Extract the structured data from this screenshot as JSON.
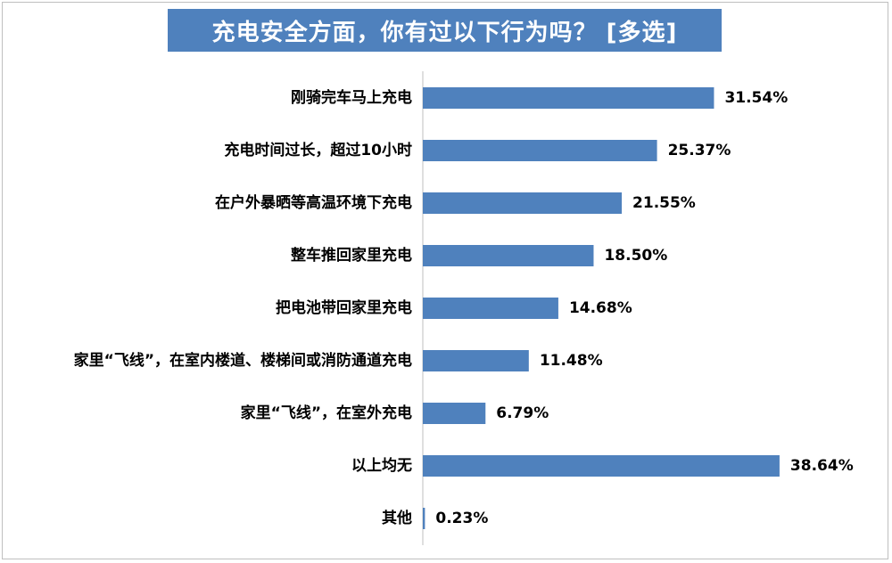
{
  "chart_data": {
    "type": "bar",
    "orientation": "horizontal",
    "title": "充电安全方面，你有过以下行为吗？ [多选]",
    "categories": [
      "刚骑完车马上充电",
      "充电时间过长，超过10小时",
      "在户外暴晒等高温环境下充电",
      "整车推回家里充电",
      "把电池带回家里充电",
      "家里“飞线”，在室内楼道、楼梯间或消防通道充电",
      "家里“飞线”，在室外充电",
      "以上均无",
      "其他"
    ],
    "values": [
      31.54,
      25.37,
      21.55,
      18.5,
      14.68,
      11.48,
      6.79,
      38.64,
      0.23
    ],
    "value_labels": [
      "31.54%",
      "25.37%",
      "21.55%",
      "18.50%",
      "14.68%",
      "11.48%",
      "6.79%",
      "38.64%",
      "0.23%"
    ],
    "unit": "%",
    "bar_color": "#4f81bd",
    "title_background": "#4f81bd",
    "title_color": "#ffffff",
    "grid": false,
    "legend": "none"
  }
}
